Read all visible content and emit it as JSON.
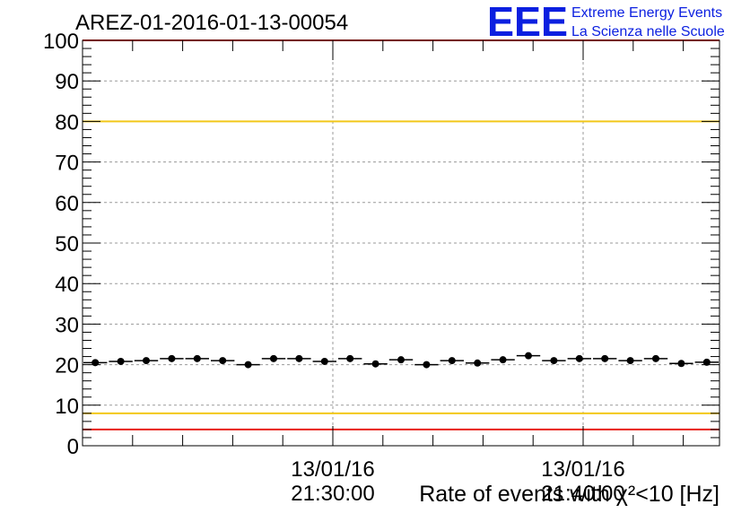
{
  "chart_data": {
    "type": "scatter",
    "title": "AREZ-01-2016-01-13-00054",
    "xlabel": "Rate of events with χ²<10 [Hz]",
    "ylabel": "",
    "ylim": [
      0,
      100
    ],
    "yticks": [
      "0",
      "10",
      "20",
      "30",
      "40",
      "50",
      "60",
      "70",
      "80",
      "90",
      "100"
    ],
    "xtick_labels": [
      {
        "date": "13/01/16",
        "time": "21:30:00"
      },
      {
        "date": "13/01/16",
        "time": "21:40:00"
      }
    ],
    "grid": true,
    "reference_lines": [
      {
        "y": 100,
        "color": "#e8201a"
      },
      {
        "y": 80,
        "color": "#f2c81a"
      },
      {
        "y": 8,
        "color": "#f2c81a"
      },
      {
        "y": 4,
        "color": "#e8201a"
      }
    ],
    "series": [
      {
        "color": "#000000",
        "values": [
          20.5,
          20.8,
          21.0,
          21.5,
          21.5,
          21.0,
          20.0,
          21.5,
          21.5,
          20.8,
          21.5,
          20.2,
          21.2,
          20.0,
          21.0,
          20.4,
          21.2,
          22.2,
          21.0,
          21.5,
          21.5,
          21.0,
          21.5,
          20.3,
          20.6
        ]
      }
    ]
  },
  "logo": {
    "mark": "EEE",
    "line1": "Extreme Energy Events",
    "line2": "La Scienza nelle Scuole"
  }
}
